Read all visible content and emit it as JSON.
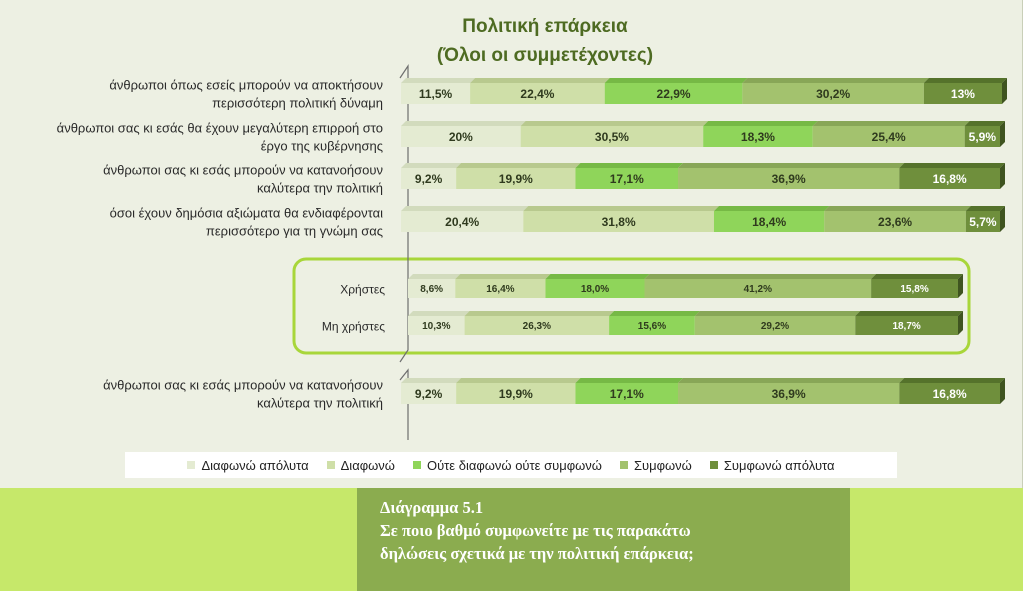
{
  "chart_data": {
    "type": "bar",
    "stacked": "percent",
    "orientation": "horizontal",
    "title": "Πολιτική επάρκεια",
    "subtitle": "(Όλοι οι συμμετέχοντες)",
    "legend_position": "bottom",
    "categories": [
      "άνθρωποι όπως εσείς μπορούν να αποκτήσουν περισσότερη πολιτική δύναμη",
      "άνθρωποι σας κι εσάς θα έχουν μεγαλύτερη επιρροή στο έργο της κυβέρνησης",
      "άνθρωποι σας κι εσάς μπορούν να κατανοήσουν καλύτερα την πολιτική",
      "όσοι έχουν δημόσια αξιώματα θα ενδιαφέρονται περισσότερο για τη γνώμη σας",
      "Χρήστες",
      "Μη χρήστες",
      "άνθρωποι σας κι εσάς μπορούν να κατανοήσουν καλύτερα την πολιτική"
    ],
    "category_lines": [
      [
        "άνθρωποι όπως εσείς μπορούν να αποκτήσουν",
        "περισσότερη πολιτική δύναμη"
      ],
      [
        "άνθρωποι σας κι εσάς θα έχουν μεγαλύτερη επιρροή στο",
        "έργο της κυβέρνησης"
      ],
      [
        "άνθρωποι σας κι εσάς μπορούν να κατανοήσουν",
        "καλύτερα την πολιτική"
      ],
      [
        "όσοι έχουν δημόσια αξιώματα θα ενδιαφέρονται",
        "περισσότερο για τη γνώμη σας"
      ],
      [
        "Χρήστες"
      ],
      [
        "Μη χρήστες"
      ],
      [
        "άνθρωποι σας κι εσάς μπορούν να κατανοήσουν",
        "καλύτερα την πολιτική"
      ]
    ],
    "series": [
      {
        "name": "Διαφωνώ απόλυτα",
        "color": "#e4ebd2",
        "values": [
          11.5,
          20,
          9.2,
          20.4,
          8.6,
          10.3,
          9.2
        ]
      },
      {
        "name": "Διαφωνώ",
        "color": "#cfdfa8",
        "values": [
          22.4,
          30.5,
          19.9,
          31.8,
          16.4,
          26.3,
          19.9
        ]
      },
      {
        "name": "Ούτε διαφωνώ ούτε συμφωνώ",
        "color": "#8fd55a",
        "values": [
          22.9,
          18.3,
          17.1,
          18.4,
          18.0,
          15.6,
          17.1
        ]
      },
      {
        "name": "Συμφωνώ",
        "color": "#a3c26e",
        "values": [
          30.2,
          25.4,
          36.9,
          23.6,
          41.2,
          29.2,
          36.9
        ]
      },
      {
        "name": "Συμφωνώ απόλυτα",
        "color": "#6f8f3c",
        "values": [
          13,
          5.9,
          16.8,
          5.7,
          15.8,
          18.7,
          16.8
        ]
      }
    ],
    "data_labels": [
      [
        "11,5%",
        "22,4%",
        "22,9%",
        "30,2%",
        "13%"
      ],
      [
        "20%",
        "30,5%",
        "18,3%",
        "25,4%",
        "5,9%"
      ],
      [
        "9,2%",
        "19,9%",
        "17,1%",
        "36,9%",
        "16,8%"
      ],
      [
        "20,4%",
        "31,8%",
        "18,4%",
        "23,6%",
        "5,7%"
      ],
      [
        "8,6%",
        "16,4%",
        "18,0%",
        "41,2%",
        "15,8%"
      ],
      [
        "10,3%",
        "26,3%",
        "15,6%",
        "29,2%",
        "18,7%"
      ],
      [
        "9,2%",
        "19,9%",
        "17,1%",
        "36,9%",
        "16,8%"
      ]
    ],
    "highlight_group": [
      "Χρήστες",
      "Μη χρήστες"
    ]
  },
  "legend": {
    "items": [
      {
        "label": "Διαφωνώ απόλυτα",
        "color": "#e4ebd2"
      },
      {
        "label": "Διαφωνώ",
        "color": "#cfdfa8"
      },
      {
        "label": "Ούτε διαφωνώ ούτε συμφωνώ",
        "color": "#8fd55a"
      },
      {
        "label": "Συμφωνώ",
        "color": "#a3c26e"
      },
      {
        "label": "Συμφωνώ απόλυτα",
        "color": "#6f8f3c"
      }
    ]
  },
  "caption": {
    "line1": "Διάγραμμα 5.1",
    "line2": "Σε ποιο βαθμό συμφωνείτε με τις παρακάτω",
    "line3": "δηλώσεις σχετικά με την πολιτική επάρκεια;"
  },
  "colors": {
    "panel_bg": "#edf0e3",
    "highlight_border": "#a8d63a",
    "band_bg": "#c6e86a",
    "caption_bg": "#8bac4f",
    "title_color": "#4e6b22"
  }
}
